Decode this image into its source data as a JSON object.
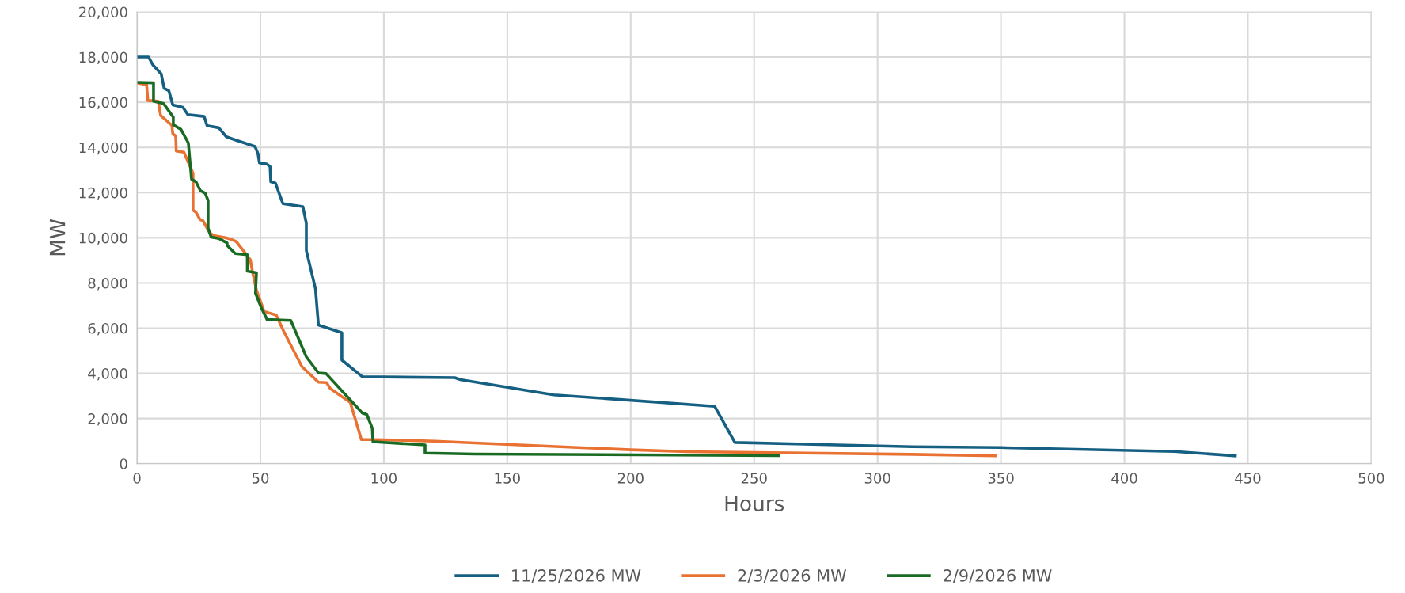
{
  "chart_data": {
    "type": "line",
    "xlabel": "Hours",
    "ylabel": "MW",
    "xlim": [
      0,
      500
    ],
    "xticks": [
      0,
      50,
      100,
      150,
      200,
      250,
      300,
      350,
      400,
      450,
      500
    ],
    "ylim": [
      0,
      20000
    ],
    "yticks": [
      {
        "value": 0,
        "label": "0"
      },
      {
        "value": 2000,
        "label": "2,000"
      },
      {
        "value": 4000,
        "label": "4,000"
      },
      {
        "value": 6000,
        "label": "6,000"
      },
      {
        "value": 8000,
        "label": "8,000"
      },
      {
        "value": 10000,
        "label": "10,000"
      },
      {
        "value": 12000,
        "label": "12,000"
      },
      {
        "value": 14000,
        "label": "14,000"
      },
      {
        "value": 16000,
        "label": "16,000"
      },
      {
        "value": 18000,
        "label": "18,000"
      },
      {
        "value": 20000,
        "label": "20,000"
      }
    ],
    "grid": true,
    "legend": "bottom",
    "marker": "none",
    "line_style": "solid",
    "series": [
      {
        "name": "11/25/2026 MW",
        "color": "#156082",
        "x": [
          0,
          4.7,
          6.4,
          9.8,
          11,
          12.9,
          14.5,
          18.6,
          20.6,
          27.2,
          28.4,
          33.1,
          36.2,
          39.8,
          47.8,
          49,
          49.6,
          52.7,
          53.9,
          54.2,
          56.1,
          59.1,
          67.2,
          68.6,
          68.6,
          72.3,
          73.5,
          83,
          83,
          91.3,
          128.7,
          131,
          168.8,
          234,
          242.2,
          314,
          350,
          420.3,
          444.9
        ],
        "values": [
          18000,
          18000,
          17660,
          17260,
          16610,
          16510,
          15880,
          15780,
          15450,
          15370,
          14960,
          14870,
          14470,
          14330,
          14040,
          13730,
          13320,
          13260,
          13150,
          12480,
          12420,
          11510,
          11380,
          10640,
          9430,
          7750,
          6140,
          5800,
          4590,
          3850,
          3810,
          3720,
          3050,
          2540,
          940,
          750,
          715,
          540,
          350
        ]
      },
      {
        "name": "2/3/2026 MW",
        "color": "#e97132",
        "x": [
          0,
          3.9,
          4.4,
          8.6,
          9.6,
          14.1,
          14.5,
          15.7,
          15.9,
          19,
          21.1,
          22.7,
          22.7,
          23.9,
          25.5,
          26.7,
          29.4,
          30.9,
          35.5,
          38.2,
          40.2,
          44.1,
          45.9,
          46.8,
          48.4,
          51.5,
          56.4,
          59.4,
          66.8,
          73.5,
          76.8,
          78.2,
          86.4,
          90.9,
          95.6,
          120.6,
          200,
          223,
          314,
          347.6
        ],
        "values": [
          16860,
          16780,
          16080,
          16050,
          15410,
          14980,
          14600,
          14510,
          13840,
          13790,
          13260,
          12850,
          11220,
          11130,
          10810,
          10760,
          10230,
          10100,
          10010,
          9930,
          9830,
          9290,
          9030,
          8490,
          7680,
          6740,
          6580,
          5870,
          4300,
          3610,
          3590,
          3340,
          2710,
          1070,
          1070,
          1000,
          615,
          535,
          415,
          350
        ]
      },
      {
        "name": "2/9/2026 MW",
        "color": "#196b24",
        "x": [
          0,
          6.7,
          6.7,
          10.8,
          14.7,
          14.7,
          17.8,
          20.8,
          22.1,
          23.9,
          25.7,
          27.6,
          28.8,
          28.8,
          30,
          33.1,
          36.5,
          36.5,
          38,
          39.8,
          44.7,
          44.7,
          48.4,
          48,
          50.2,
          52.7,
          62.3,
          68.6,
          73.5,
          76.6,
          91.3,
          93.1,
          95.3,
          95.6,
          116.7,
          116.7,
          136.8,
          259.9
        ],
        "values": [
          16880,
          16860,
          16050,
          15940,
          15340,
          15000,
          14800,
          14200,
          12590,
          12480,
          12080,
          11980,
          11650,
          10440,
          10030,
          9970,
          9770,
          9660,
          9500,
          9300,
          9250,
          8520,
          8450,
          7550,
          6940,
          6380,
          6340,
          4730,
          4020,
          3990,
          2240,
          2180,
          1570,
          970,
          830,
          470,
          430,
          360
        ]
      }
    ]
  }
}
